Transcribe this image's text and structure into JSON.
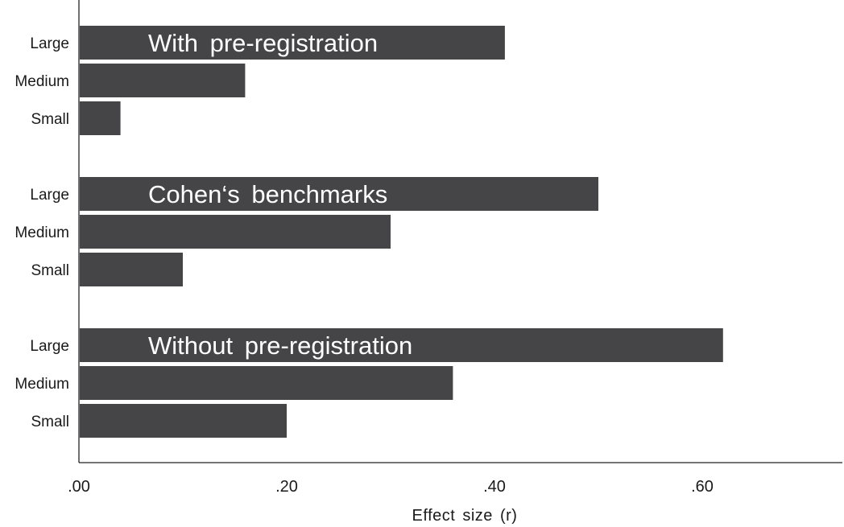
{
  "chart_data": {
    "type": "bar",
    "orientation": "horizontal",
    "xlabel": "Effect size (r)",
    "xlim": [
      0,
      0.72
    ],
    "x_ticks": [
      0,
      0.2,
      0.4,
      0.6
    ],
    "x_tick_labels": [
      ".00",
      ".20",
      ".40",
      ".60"
    ],
    "grid": false,
    "legend": "none",
    "colors": {
      "bar": "#454547",
      "group_label": "#ffffff",
      "axis": "#222222"
    },
    "groups": [
      {
        "label": "With  pre-registration",
        "categories": [
          "Large",
          "Medium",
          "Small"
        ],
        "values": [
          0.41,
          0.16,
          0.04
        ]
      },
      {
        "label": "Cohen‘s  benchmarks",
        "categories": [
          "Large",
          "Medium",
          "Small"
        ],
        "values": [
          0.5,
          0.3,
          0.1
        ]
      },
      {
        "label": "Without  pre-registration",
        "categories": [
          "Large",
          "Medium",
          "Small"
        ],
        "values": [
          0.62,
          0.36,
          0.2
        ]
      }
    ]
  }
}
